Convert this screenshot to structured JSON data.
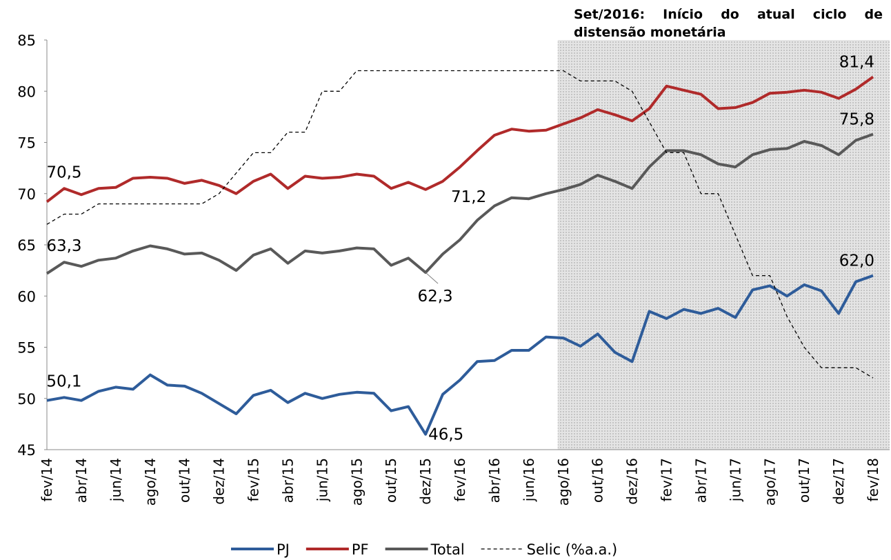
{
  "chart_data": {
    "type": "line",
    "annotation": "Set/2016: Início do atual ciclo de distensão monetária",
    "highlight_from": "ago/16",
    "categories": [
      "fev/14",
      null,
      "abr/14",
      null,
      "jun/14",
      null,
      "ago/14",
      null,
      "out/14",
      null,
      "dez/14",
      null,
      "fev/15",
      null,
      "abr/15",
      null,
      "jun/15",
      null,
      "ago/15",
      null,
      "out/15",
      null,
      "dez/15",
      null,
      "fev/16",
      null,
      "abr/16",
      null,
      "jun/16",
      null,
      "ago/16",
      null,
      "out/16",
      null,
      "dez/16",
      null,
      "fev/17",
      null,
      "abr/17",
      null,
      "jun/17",
      null,
      "ago/17",
      null,
      "out/17",
      null,
      "dez/17",
      null,
      "fev/18"
    ],
    "ylim": [
      45,
      85
    ],
    "yticks": [
      45,
      50,
      55,
      60,
      65,
      70,
      75,
      80,
      85
    ],
    "y2lim": [
      5,
      15
    ],
    "series": [
      {
        "name": "PJ",
        "color": "#2e5c9a",
        "values": [
          49.8,
          50.1,
          49.8,
          50.7,
          51.1,
          50.9,
          52.3,
          51.3,
          51.2,
          50.5,
          49.5,
          48.5,
          50.3,
          50.8,
          49.6,
          50.5,
          50.0,
          50.4,
          50.6,
          50.5,
          48.8,
          49.2,
          46.5,
          50.4,
          51.8,
          53.6,
          53.7,
          54.7,
          54.7,
          56.0,
          55.9,
          55.1,
          56.3,
          54.5,
          53.6,
          58.5,
          57.8,
          58.7,
          58.3,
          58.8,
          57.9,
          60.6,
          61.0,
          60.0,
          61.1,
          60.5,
          58.3,
          61.4,
          62.0
        ],
        "value_labels": [
          null,
          "50,1",
          null,
          null,
          null,
          null,
          null,
          null,
          null,
          null,
          null,
          null,
          null,
          null,
          null,
          null,
          null,
          null,
          null,
          null,
          null,
          null,
          "46,5",
          null,
          null,
          null,
          null,
          null,
          null,
          null,
          null,
          null,
          null,
          null,
          null,
          null,
          null,
          null,
          null,
          null,
          null,
          null,
          null,
          null,
          null,
          null,
          null,
          null,
          "62,0"
        ]
      },
      {
        "name": "PF",
        "color": "#b02a2a",
        "values": [
          69.2,
          70.5,
          69.9,
          70.5,
          70.6,
          71.5,
          71.6,
          71.5,
          71.0,
          71.3,
          70.8,
          70.0,
          71.2,
          71.9,
          70.5,
          71.7,
          71.5,
          71.6,
          71.9,
          71.7,
          70.5,
          71.1,
          70.4,
          71.2,
          72.6,
          74.2,
          75.7,
          76.3,
          76.1,
          76.2,
          76.8,
          77.4,
          78.2,
          77.7,
          77.1,
          78.3,
          80.5,
          80.1,
          79.7,
          78.3,
          78.4,
          78.9,
          79.8,
          79.9,
          80.1,
          79.9,
          79.3,
          80.2,
          81.4
        ],
        "value_labels": [
          null,
          "70,5",
          null,
          null,
          null,
          null,
          null,
          null,
          null,
          null,
          null,
          null,
          null,
          null,
          null,
          null,
          null,
          null,
          null,
          null,
          null,
          null,
          null,
          "71,2",
          null,
          null,
          null,
          null,
          null,
          null,
          null,
          null,
          null,
          null,
          null,
          null,
          null,
          null,
          null,
          null,
          null,
          null,
          null,
          null,
          null,
          null,
          null,
          null,
          "81,4"
        ]
      },
      {
        "name": "Total",
        "color": "#595959",
        "values": [
          62.2,
          63.3,
          62.9,
          63.5,
          63.7,
          64.4,
          64.9,
          64.6,
          64.1,
          64.2,
          63.5,
          62.5,
          64.0,
          64.6,
          63.2,
          64.4,
          64.2,
          64.4,
          64.7,
          64.6,
          63.0,
          63.7,
          62.3,
          64.1,
          65.5,
          67.4,
          68.8,
          69.6,
          69.5,
          70.0,
          70.4,
          70.9,
          71.8,
          71.2,
          70.5,
          72.6,
          74.2,
          74.2,
          73.8,
          72.9,
          72.6,
          73.8,
          74.3,
          74.4,
          75.1,
          74.7,
          73.8,
          75.2,
          75.8
        ],
        "value_labels": [
          null,
          "63,3",
          null,
          null,
          null,
          null,
          null,
          null,
          null,
          null,
          null,
          null,
          null,
          null,
          null,
          null,
          null,
          null,
          null,
          null,
          null,
          null,
          "62,3",
          null,
          null,
          null,
          null,
          null,
          null,
          null,
          null,
          null,
          null,
          null,
          null,
          null,
          null,
          null,
          null,
          null,
          null,
          null,
          null,
          null,
          null,
          null,
          null,
          null,
          "75,8"
        ]
      },
      {
        "name": "Selic (%a.a.)",
        "color": "#000000",
        "line_style": "dashed",
        "axis": "y2",
        "values": [
          10.5,
          10.75,
          10.75,
          11.0,
          11.0,
          11.0,
          11.0,
          11.0,
          11.0,
          11.0,
          11.25,
          11.75,
          12.25,
          12.25,
          12.75,
          12.75,
          13.75,
          13.75,
          14.25,
          14.25,
          14.25,
          14.25,
          14.25,
          14.25,
          14.25,
          14.25,
          14.25,
          14.25,
          14.25,
          14.25,
          14.25,
          14.0,
          14.0,
          14.0,
          13.75,
          13.0,
          12.25,
          12.25,
          11.25,
          11.25,
          10.25,
          9.25,
          9.25,
          8.25,
          7.5,
          7.0,
          7.0,
          7.0,
          6.75
        ]
      }
    ]
  }
}
